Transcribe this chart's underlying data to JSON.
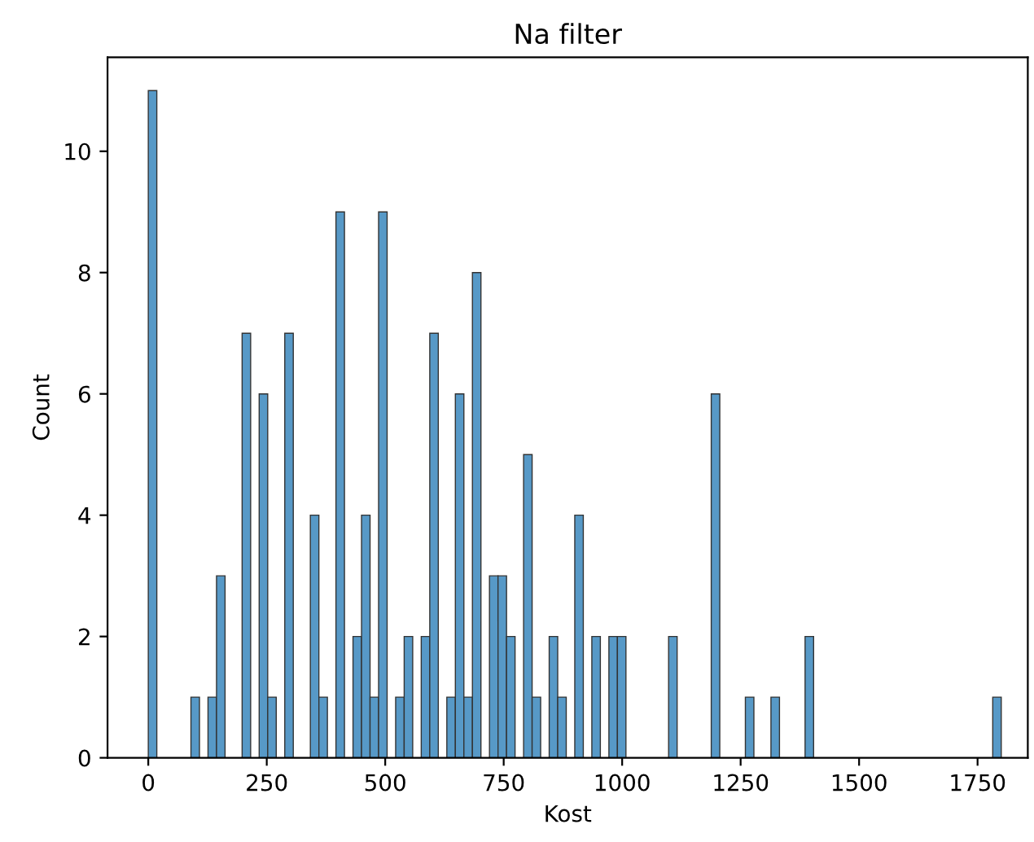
{
  "chart_data": {
    "type": "histogram",
    "title": "Na filter",
    "xlabel": "Kost",
    "ylabel": "Count",
    "color": "#5799c7",
    "bins": [
      0,
      18,
      36,
      54,
      72,
      90,
      108,
      126,
      144,
      162,
      180,
      198,
      216,
      234,
      252,
      270,
      288,
      306,
      324,
      342,
      360,
      378,
      396,
      414,
      432,
      450,
      468,
      486,
      504,
      522,
      540,
      558,
      576,
      594,
      612,
      630,
      648,
      666,
      684,
      702,
      720,
      738,
      756,
      774,
      792,
      810,
      828,
      846,
      864,
      882,
      900,
      918,
      936,
      954,
      972,
      990,
      1008,
      1026,
      1044,
      1062,
      1080,
      1098,
      1116,
      1134,
      1152,
      1170,
      1188,
      1206,
      1224,
      1242,
      1260,
      1278,
      1296,
      1314,
      1332,
      1350,
      1368,
      1386,
      1404,
      1422,
      1440,
      1458,
      1476,
      1494,
      1512,
      1530,
      1548,
      1566,
      1584,
      1602,
      1620,
      1638,
      1656,
      1674,
      1692,
      1710,
      1728,
      1746,
      1764,
      1782,
      1800
    ],
    "values": [
      11,
      0,
      0,
      0,
      0,
      1,
      0,
      1,
      3,
      0,
      0,
      7,
      0,
      6,
      1,
      0,
      7,
      0,
      0,
      4,
      1,
      0,
      9,
      0,
      2,
      4,
      1,
      9,
      0,
      1,
      2,
      0,
      2,
      7,
      0,
      1,
      6,
      1,
      8,
      0,
      3,
      3,
      2,
      0,
      5,
      1,
      0,
      2,
      1,
      0,
      4,
      0,
      2,
      0,
      2,
      2,
      0,
      0,
      0,
      0,
      0,
      2,
      0,
      0,
      0,
      0,
      6,
      0,
      0,
      0,
      1,
      0,
      0,
      1,
      0,
      0,
      0,
      2,
      0,
      0,
      0,
      0,
      0,
      0,
      0,
      0,
      0,
      0,
      0,
      0,
      0,
      0,
      0,
      0,
      0,
      0,
      0,
      0,
      0,
      1
    ],
    "xlim": [
      -86,
      1856
    ],
    "ylim": [
      0,
      11.55
    ],
    "xticks": [
      0,
      250,
      500,
      750,
      1000,
      1250,
      1500,
      1750
    ],
    "yticks": [
      0,
      2,
      4,
      6,
      8,
      10
    ]
  }
}
